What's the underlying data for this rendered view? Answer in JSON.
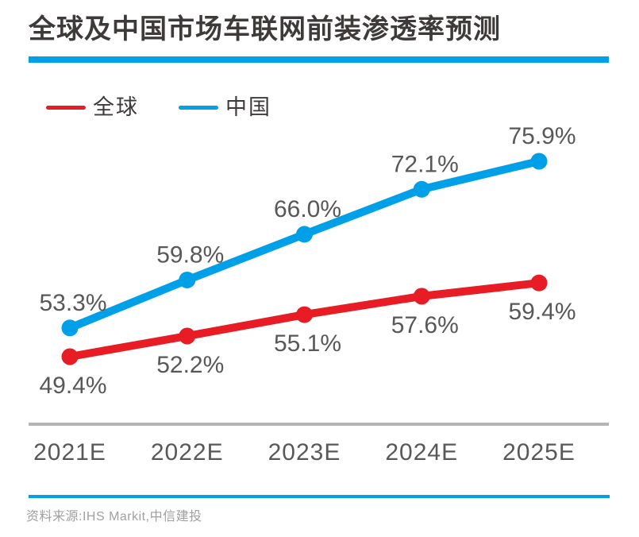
{
  "header": {
    "title": "全球及中国市场车联网前装渗透率预测"
  },
  "chart_data": {
    "type": "line",
    "title": "全球及中国市场车联网前装渗透率预测",
    "categories": [
      "2021E",
      "2022E",
      "2023E",
      "2024E",
      "2025E"
    ],
    "series": [
      {
        "name": "全球",
        "color": "#E71C24",
        "values": [
          49.4,
          52.2,
          55.1,
          57.6,
          59.4
        ],
        "label_position": "below"
      },
      {
        "name": "中国",
        "color": "#00A0E9",
        "values": [
          53.3,
          59.8,
          66.0,
          72.1,
          75.9
        ],
        "label_position": "above"
      }
    ],
    "value_suffix": "%",
    "ylim": [
      46,
      80
    ],
    "grid": false,
    "legend_position": "top-left",
    "xlabel": "",
    "ylabel": ""
  },
  "footer": {
    "source": "资料来源:IHS Markit,中信建投"
  },
  "colors": {
    "accent_blue": "#00A0E9",
    "series_red": "#E71C24",
    "title_dark": "#3E3A39",
    "label_gray": "#595757",
    "rule_gray": "#B5B5B6",
    "source_gray": "#9FA0A0"
  }
}
